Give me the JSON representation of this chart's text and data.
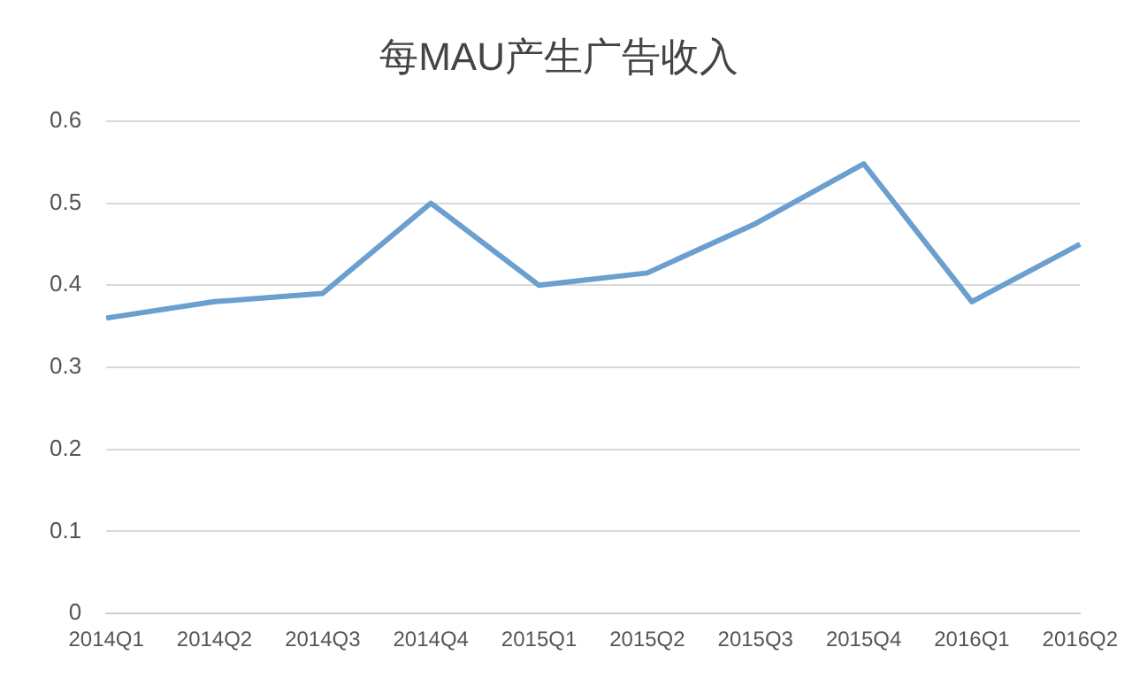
{
  "chart_data": {
    "type": "line",
    "title": "每MAU产生广告收入",
    "categories": [
      "2014Q1",
      "2014Q2",
      "2014Q3",
      "2014Q4",
      "2015Q1",
      "2015Q2",
      "2015Q3",
      "2015Q4",
      "2016Q1",
      "2016Q2"
    ],
    "series": [
      {
        "color": "#6a9fcf",
        "values": [
          0.36,
          0.38,
          0.39,
          0.5,
          0.4,
          0.415,
          0.475,
          0.548,
          0.38,
          0.45
        ]
      }
    ],
    "ylim": [
      0,
      0.6
    ],
    "yticks": [
      0,
      0.1,
      0.2,
      0.3,
      0.4,
      0.5,
      0.6
    ],
    "grid": "y",
    "legend": false,
    "marker": "none",
    "line_style": "solid"
  }
}
